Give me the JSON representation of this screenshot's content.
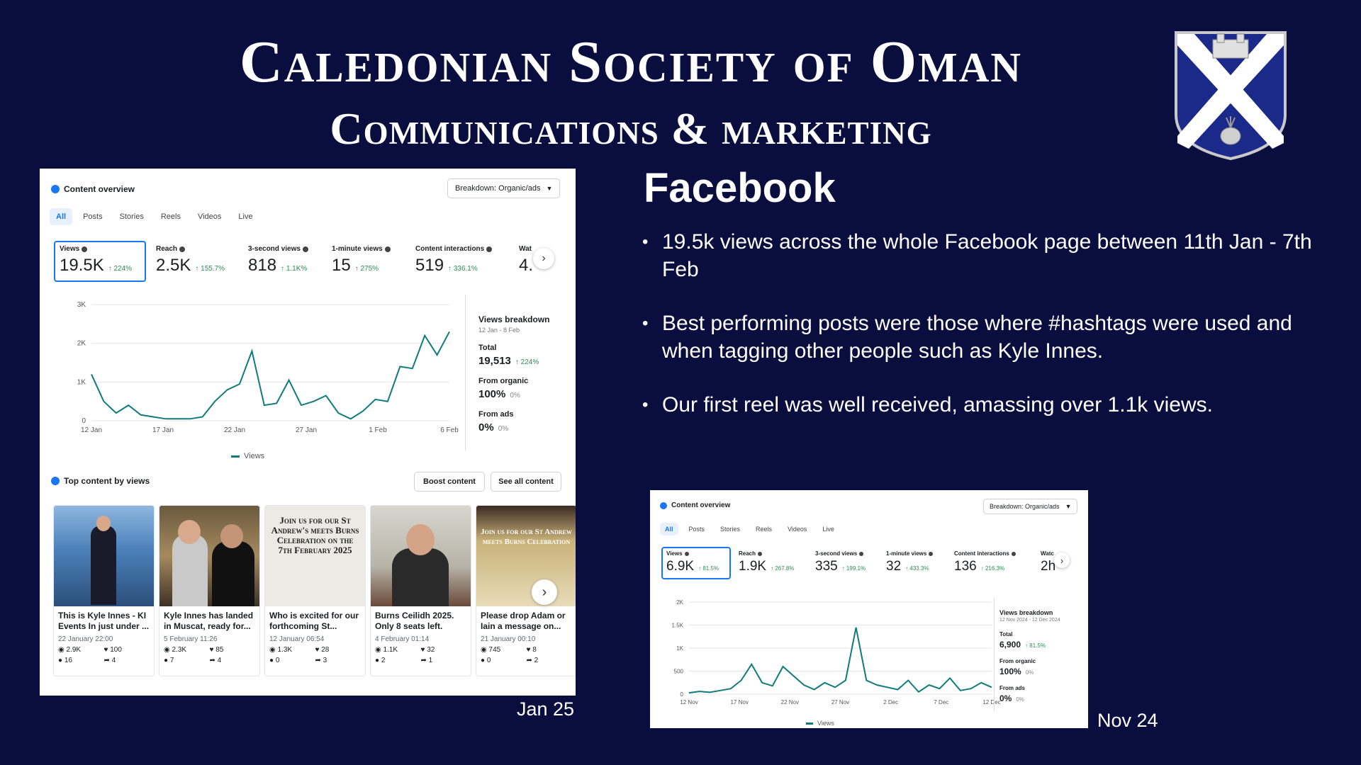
{
  "slide": {
    "title_line1": "Caledonian Society of Oman",
    "title_line2": "Communications & marketing",
    "heading": "Facebook",
    "bullets": [
      "19.5k views across the whole Facebook page between 11th Jan - 7th Feb",
      "Best performing posts were those where #hashtags were used and when tagging other people such as Kyle Innes.",
      "Our first reel was well received, amassing over 1.1k views."
    ],
    "caption_jan": "Jan 25",
    "caption_nov": "Nov 24",
    "colors": {
      "background": "#0a0e3f",
      "facebook_blue": "#1877f2",
      "line": "#0f7c7a",
      "positive": "#2e8b57"
    }
  },
  "jan_panel": {
    "header": "Content overview",
    "dropdown": "Breakdown: Organic/ads",
    "tabs": [
      "All",
      "Posts",
      "Stories",
      "Reels",
      "Videos",
      "Live"
    ],
    "metrics": [
      {
        "label": "Views",
        "value": "19.5K",
        "change": "↑ 224%"
      },
      {
        "label": "Reach",
        "value": "2.5K",
        "change": "↑ 155.7%"
      },
      {
        "label": "3-second views",
        "value": "818",
        "change": "↑ 1.1K%"
      },
      {
        "label": "1-minute views",
        "value": "15",
        "change": "↑ 275%"
      },
      {
        "label": "Content interactions",
        "value": "519",
        "change": "↑ 336.1%"
      },
      {
        "label": "Wat",
        "value": "4.",
        "change": ""
      }
    ],
    "breakdown": {
      "title": "Views breakdown",
      "range": "12 Jan - 8 Feb",
      "total_label": "Total",
      "total_value": "19,513",
      "total_change": "↑ 224%",
      "organic_label": "From organic",
      "organic_value": "100%",
      "organic_change": "0%",
      "ads_label": "From ads",
      "ads_value": "0%",
      "ads_change": "0%"
    },
    "legend": "Views",
    "top_content_header": "Top content by views",
    "boost_button": "Boost content",
    "see_all_button": "See all content",
    "cards": [
      {
        "title": "This is Kyle Innes - KI Events In just under ...",
        "date": "22 January 22:00",
        "views": "2.9K",
        "likes": "100",
        "comments": "16",
        "shares": "4",
        "thumb_text": ""
      },
      {
        "title": "Kyle Innes has landed in Muscat, ready for...",
        "date": "5 February 11:26",
        "views": "2.3K",
        "likes": "85",
        "comments": "7",
        "shares": "4",
        "thumb_text": ""
      },
      {
        "title": "Who is excited for our forthcoming St...",
        "date": "12 January 06:54",
        "views": "1.3K",
        "likes": "28",
        "comments": "0",
        "shares": "3",
        "thumb_text": "Join us for our St Andrew's meets Burns Celebration on the 7th February 2025"
      },
      {
        "title": "Burns Ceilidh 2025. Only 8 seats left.",
        "date": "4 February 01:14",
        "views": "1.1K",
        "likes": "32",
        "comments": "2",
        "shares": "1",
        "thumb_text": ""
      },
      {
        "title": "Please drop Adam or Iain a message on...",
        "date": "21 January 00:10",
        "views": "745",
        "likes": "8",
        "comments": "0",
        "shares": "2",
        "thumb_text": "Join us for our St Andrew meets Burns Celebration"
      }
    ]
  },
  "nov_panel": {
    "header": "Content overview",
    "dropdown": "Breakdown: Organic/ads",
    "tabs": [
      "All",
      "Posts",
      "Stories",
      "Reels",
      "Videos",
      "Live"
    ],
    "metrics": [
      {
        "label": "Views",
        "value": "6.9K",
        "change": "↑ 81.5%"
      },
      {
        "label": "Reach",
        "value": "1.9K",
        "change": "↑ 267.8%"
      },
      {
        "label": "3-second views",
        "value": "335",
        "change": "↑ 199.1%"
      },
      {
        "label": "1-minute views",
        "value": "32",
        "change": "↑ 433.3%"
      },
      {
        "label": "Content interactions",
        "value": "136",
        "change": "↑ 216.3%"
      },
      {
        "label": "Watc",
        "value": "2h",
        "change": ""
      }
    ],
    "breakdown": {
      "title": "Views breakdown",
      "range": "12 Nov 2024 - 12 Dec 2024",
      "total_label": "Total",
      "total_value": "6,900",
      "total_change": "↑ 81.5%",
      "organic_label": "From organic",
      "organic_value": "100%",
      "organic_change": "0%",
      "ads_label": "From ads",
      "ads_value": "0%",
      "ads_change": "0%"
    },
    "legend": "Views"
  },
  "chart_data": [
    {
      "type": "line",
      "series": [
        {
          "values": [
            1200,
            500,
            200,
            400,
            150,
            100,
            50,
            50,
            50,
            100,
            500,
            800,
            950,
            1800,
            400,
            450,
            1050,
            400,
            500,
            650,
            200,
            50,
            250,
            550,
            500,
            1400,
            1350,
            2200,
            1700,
            2300
          ]
        }
      ],
      "x_ticks": [
        "12 Jan",
        "17 Jan",
        "22 Jan",
        "27 Jan",
        "1 Feb",
        "6 Feb"
      ],
      "y_ticks": [
        "0",
        "1K",
        "2K",
        "3K"
      ],
      "ylim": [
        0,
        3000
      ],
      "grid": true
    },
    {
      "type": "line",
      "series": [
        {
          "values": [
            30,
            60,
            40,
            80,
            120,
            300,
            650,
            250,
            180,
            600,
            400,
            200,
            100,
            250,
            150,
            300,
            1450,
            300,
            200,
            150,
            100,
            300,
            50,
            200,
            120,
            350,
            80,
            120,
            250,
            150
          ]
        }
      ],
      "x_ticks": [
        "12 Nov",
        "17 Nov",
        "22 Nov",
        "27 Nov",
        "2 Dec",
        "7 Dec",
        "12 Dec"
      ],
      "y_ticks": [
        "0",
        "500",
        "1K",
        "1.5K",
        "2K"
      ],
      "ylim": [
        0,
        2000
      ],
      "grid": true
    }
  ]
}
